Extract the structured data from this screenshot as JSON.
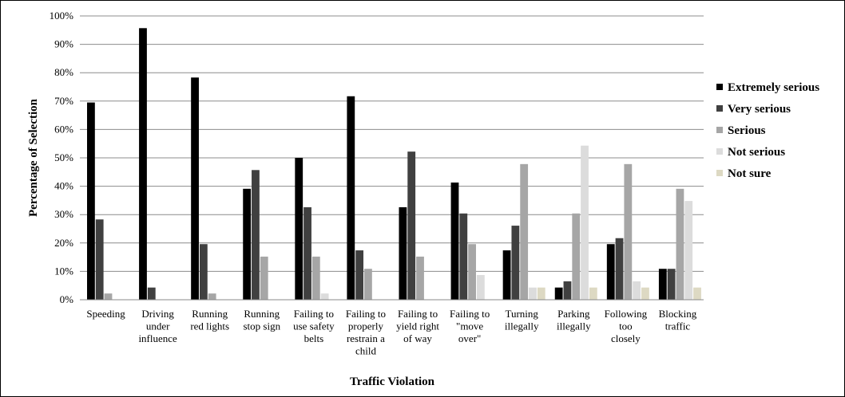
{
  "chart_data": {
    "type": "bar",
    "xlabel": "Traffic Violation",
    "ylabel": "Percentage of Selection",
    "ylim": [
      0,
      100
    ],
    "y_ticks": [
      "0%",
      "10%",
      "20%",
      "30%",
      "40%",
      "50%",
      "60%",
      "70%",
      "80%",
      "90%",
      "100%"
    ],
    "y_tick_values": [
      0,
      10,
      20,
      30,
      40,
      50,
      60,
      70,
      80,
      90,
      100
    ],
    "grid": true,
    "legend_position": "right",
    "categories": [
      [
        "Speeding"
      ],
      [
        "Driving",
        "under",
        "influence"
      ],
      [
        "Running",
        "red lights"
      ],
      [
        "Running",
        "stop sign"
      ],
      [
        "Failing to",
        "use safety",
        "belts"
      ],
      [
        "Failing to",
        "properly",
        "restrain a",
        "child"
      ],
      [
        "Failing to",
        "yield right",
        "of way"
      ],
      [
        "Failing to",
        "\"move",
        "over\""
      ],
      [
        "Turning",
        "illegally"
      ],
      [
        "Parking",
        "illegally"
      ],
      [
        "Following",
        "too",
        "closely"
      ],
      [
        "Blocking",
        "traffic"
      ]
    ],
    "series": [
      {
        "name": "Extremely serious",
        "color": "#000000",
        "values": [
          69.5,
          95.7,
          78.3,
          39.1,
          50.0,
          71.7,
          32.6,
          41.3,
          17.4,
          4.3,
          19.6,
          10.9
        ]
      },
      {
        "name": "Very serious",
        "color": "#404040",
        "values": [
          28.3,
          4.3,
          19.6,
          45.7,
          32.6,
          17.4,
          52.2,
          30.4,
          26.1,
          6.5,
          21.7,
          10.9
        ]
      },
      {
        "name": "Serious",
        "color": "#a6a6a6",
        "values": [
          2.2,
          0,
          2.2,
          15.2,
          15.2,
          10.9,
          15.2,
          19.6,
          47.8,
          30.4,
          47.8,
          39.1
        ]
      },
      {
        "name": "Not serious",
        "color": "#dcdcdc",
        "values": [
          0,
          0,
          0,
          0,
          2.2,
          0,
          0,
          8.7,
          4.3,
          54.3,
          6.5,
          34.8
        ]
      },
      {
        "name": "Not sure",
        "color": "#ddd9c3",
        "values": [
          0,
          0,
          0,
          0,
          0,
          0,
          0,
          0,
          4.3,
          4.3,
          4.3,
          4.3
        ]
      }
    ]
  }
}
